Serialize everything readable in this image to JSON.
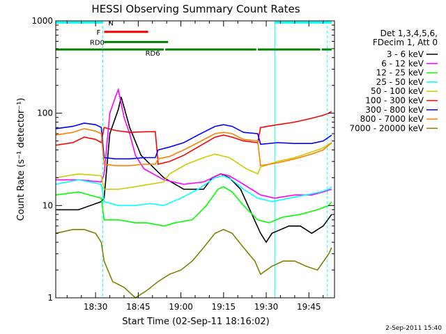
{
  "chart_data": {
    "type": "line",
    "title": "HESSI Observing Summary Count Rates",
    "xlabel": "Start Time (02-Sep-11 18:16:02)",
    "ylabel": "Count Rate (s⁻¹ detector⁻¹)",
    "x_unit": "minutes after 18:16:02",
    "xlim": [
      0,
      98
    ],
    "ylim": [
      1,
      1000
    ],
    "y_scale": "log",
    "grid": false,
    "x_ticks": [
      {
        "t": 14,
        "label": "18:30"
      },
      {
        "t": 29,
        "label": "18:45"
      },
      {
        "t": 44,
        "label": "19:00"
      },
      {
        "t": 59,
        "label": "19:15"
      },
      {
        "t": 74,
        "label": "19:30"
      },
      {
        "t": 89,
        "label": "19:45"
      }
    ],
    "minor_x_ticks": [
      4,
      9,
      19,
      24,
      34,
      39,
      49,
      54,
      64,
      69,
      79,
      84,
      94
    ],
    "y_ticks": [
      {
        "v": 1,
        "label": "1"
      },
      {
        "v": 10,
        "label": "10"
      },
      {
        "v": 100,
        "label": "100"
      },
      {
        "v": 1000,
        "label": "1000"
      }
    ],
    "legend": {
      "placement": "right",
      "header": [
        "Det 1,3,4,5,6,",
        "FDecim 1, Att 0"
      ]
    },
    "series": [
      {
        "name": "3 - 6 keV",
        "color": "#000000",
        "points": [
          [
            0,
            9
          ],
          [
            8,
            9
          ],
          [
            16,
            11
          ],
          [
            17,
            12
          ],
          [
            19,
            60
          ],
          [
            22,
            110
          ],
          [
            23,
            150
          ],
          [
            26,
            70
          ],
          [
            30,
            35
          ],
          [
            38,
            20
          ],
          [
            45,
            15
          ],
          [
            52,
            15
          ],
          [
            55,
            20
          ],
          [
            58,
            22
          ],
          [
            61,
            20
          ],
          [
            65,
            15
          ],
          [
            69,
            8
          ],
          [
            72,
            5
          ],
          [
            74,
            4
          ],
          [
            76,
            5
          ],
          [
            82,
            6
          ],
          [
            86,
            6
          ],
          [
            90,
            5
          ],
          [
            94,
            6
          ],
          [
            97,
            8
          ]
        ]
      },
      {
        "name": "6 - 12 keV",
        "color": "#ff00ff",
        "points": [
          [
            0,
            19
          ],
          [
            8,
            19
          ],
          [
            16,
            18
          ],
          [
            17,
            22
          ],
          [
            19,
            100
          ],
          [
            21,
            150
          ],
          [
            22,
            180
          ],
          [
            24,
            90
          ],
          [
            26,
            60
          ],
          [
            28,
            35
          ],
          [
            31,
            25
          ],
          [
            38,
            19
          ],
          [
            45,
            17
          ],
          [
            52,
            18
          ],
          [
            58,
            22
          ],
          [
            61,
            21
          ],
          [
            66,
            17
          ],
          [
            72,
            13
          ],
          [
            77,
            12
          ],
          [
            84,
            13
          ],
          [
            90,
            13
          ],
          [
            94,
            14
          ],
          [
            97,
            15
          ]
        ]
      },
      {
        "name": "12 - 25 keV",
        "color": "#00ff00",
        "points": [
          [
            0,
            13
          ],
          [
            8,
            14
          ],
          [
            16,
            12
          ],
          [
            17,
            7
          ],
          [
            22,
            7
          ],
          [
            28,
            6.5
          ],
          [
            32,
            6.5
          ],
          [
            38,
            6
          ],
          [
            42,
            6.5
          ],
          [
            48,
            7
          ],
          [
            53,
            10
          ],
          [
            57,
            15
          ],
          [
            59,
            16
          ],
          [
            62,
            14
          ],
          [
            66,
            10
          ],
          [
            71,
            7
          ],
          [
            75,
            6.5
          ],
          [
            80,
            7.5
          ],
          [
            86,
            8
          ],
          [
            92,
            9
          ],
          [
            96,
            10
          ],
          [
            97,
            11
          ]
        ]
      },
      {
        "name": "25 - 50 keV",
        "color": "#00ffff",
        "points": [
          [
            0,
            17
          ],
          [
            8,
            19
          ],
          [
            16,
            17
          ],
          [
            17,
            11
          ],
          [
            22,
            10
          ],
          [
            28,
            10
          ],
          [
            33,
            10.5
          ],
          [
            38,
            10
          ],
          [
            44,
            12
          ],
          [
            50,
            15
          ],
          [
            56,
            20
          ],
          [
            59,
            21
          ],
          [
            62,
            19
          ],
          [
            66,
            15
          ],
          [
            71,
            12
          ],
          [
            76,
            11
          ],
          [
            82,
            12
          ],
          [
            88,
            13
          ],
          [
            93,
            14
          ],
          [
            96,
            15
          ],
          [
            97,
            16
          ]
        ]
      },
      {
        "name": "50 - 100 keV",
        "color": "#cccc00",
        "points": [
          [
            0,
            20
          ],
          [
            8,
            22
          ],
          [
            16,
            21
          ],
          [
            17,
            15
          ],
          [
            22,
            15
          ],
          [
            28,
            16
          ],
          [
            33,
            17
          ],
          [
            38,
            18
          ],
          [
            40,
            22
          ],
          [
            46,
            28
          ],
          [
            52,
            33
          ],
          [
            56,
            36
          ],
          [
            61,
            33
          ],
          [
            67,
            25
          ],
          [
            71,
            22
          ],
          [
            72,
            26
          ],
          [
            78,
            30
          ],
          [
            84,
            33
          ],
          [
            90,
            38
          ],
          [
            94,
            42
          ],
          [
            96,
            46
          ],
          [
            97,
            48
          ]
        ]
      },
      {
        "name": "100 - 300 keV",
        "color": "#ff0000",
        "points": [
          [
            0,
            45
          ],
          [
            6,
            48
          ],
          [
            10,
            55
          ],
          [
            14,
            52
          ],
          [
            16,
            48
          ],
          [
            17,
            70
          ],
          [
            21,
            65
          ],
          [
            26,
            62
          ],
          [
            32,
            63
          ],
          [
            35,
            63
          ],
          [
            36,
            28
          ],
          [
            40,
            30
          ],
          [
            45,
            35
          ],
          [
            50,
            43
          ],
          [
            56,
            55
          ],
          [
            59,
            58
          ],
          [
            62,
            55
          ],
          [
            66,
            50
          ],
          [
            71,
            48
          ],
          [
            72,
            70
          ],
          [
            78,
            75
          ],
          [
            84,
            80
          ],
          [
            90,
            88
          ],
          [
            94,
            95
          ],
          [
            96,
            100
          ],
          [
            97,
            105
          ]
        ]
      },
      {
        "name": "300 - 800 keV",
        "color": "#0000ff",
        "points": [
          [
            0,
            68
          ],
          [
            6,
            72
          ],
          [
            10,
            78
          ],
          [
            14,
            75
          ],
          [
            16,
            70
          ],
          [
            17,
            33
          ],
          [
            21,
            32
          ],
          [
            26,
            32
          ],
          [
            31,
            33
          ],
          [
            35,
            33
          ],
          [
            36,
            40
          ],
          [
            40,
            43
          ],
          [
            45,
            48
          ],
          [
            50,
            58
          ],
          [
            56,
            72
          ],
          [
            59,
            75
          ],
          [
            62,
            72
          ],
          [
            66,
            62
          ],
          [
            71,
            60
          ],
          [
            72,
            46
          ],
          [
            78,
            48
          ],
          [
            84,
            47
          ],
          [
            90,
            47
          ],
          [
            94,
            50
          ],
          [
            96,
            55
          ],
          [
            97,
            58
          ]
        ]
      },
      {
        "name": "800 - 7000 keV",
        "color": "#ff8000",
        "points": [
          [
            0,
            58
          ],
          [
            6,
            62
          ],
          [
            10,
            68
          ],
          [
            14,
            64
          ],
          [
            16,
            60
          ],
          [
            17,
            28
          ],
          [
            21,
            27
          ],
          [
            26,
            27
          ],
          [
            31,
            28
          ],
          [
            35,
            28
          ],
          [
            36,
            32
          ],
          [
            40,
            34
          ],
          [
            45,
            40
          ],
          [
            50,
            48
          ],
          [
            56,
            60
          ],
          [
            59,
            62
          ],
          [
            62,
            60
          ],
          [
            66,
            52
          ],
          [
            71,
            50
          ],
          [
            72,
            27
          ],
          [
            78,
            29
          ],
          [
            84,
            32
          ],
          [
            90,
            36
          ],
          [
            94,
            40
          ],
          [
            96,
            45
          ],
          [
            97,
            48
          ]
        ]
      },
      {
        "name": "7000 - 20000 keV",
        "color": "#808000",
        "points": [
          [
            0,
            5
          ],
          [
            6,
            5.5
          ],
          [
            10,
            5.5
          ],
          [
            14,
            5
          ],
          [
            16,
            4
          ],
          [
            17,
            2.5
          ],
          [
            20,
            1.5
          ],
          [
            24,
            1.3
          ],
          [
            28,
            1
          ],
          [
            32,
            1.2
          ],
          [
            36,
            1.5
          ],
          [
            40,
            1.8
          ],
          [
            44,
            2
          ],
          [
            48,
            2.5
          ],
          [
            52,
            3.5
          ],
          [
            56,
            5
          ],
          [
            59,
            5.5
          ],
          [
            62,
            5
          ],
          [
            66,
            3.5
          ],
          [
            70,
            2.5
          ],
          [
            72,
            1.8
          ],
          [
            76,
            2.2
          ],
          [
            80,
            2.5
          ],
          [
            84,
            2.5
          ],
          [
            88,
            2.2
          ],
          [
            92,
            2
          ],
          [
            96,
            3
          ],
          [
            97,
            3.5
          ]
        ]
      }
    ],
    "status_bars": [
      {
        "label": "N",
        "color": "#00ffff",
        "segments": [
          [
            0,
            16.5
          ],
          [
            77,
            97
          ]
        ],
        "y": 960
      },
      {
        "label": "F",
        "color": "#ff0000",
        "segments": [
          [
            17,
            32.5
          ]
        ],
        "y": 760
      },
      {
        "label": "RD0",
        "color": "#008000",
        "segments": [
          [
            17,
            39.5
          ]
        ],
        "y": 590
      },
      {
        "label": "RD6",
        "color": "#008000",
        "segments": [
          [
            0,
            38
          ],
          [
            38.5,
            70.5
          ],
          [
            71,
            93
          ],
          [
            93.5,
            97
          ]
        ],
        "y": 490
      }
    ],
    "vertical_markers": [
      {
        "t": 0,
        "style": "solid",
        "color": "#00ffff"
      },
      {
        "t": 16.5,
        "style": "dashed",
        "color": "#00ffff"
      },
      {
        "t": 77,
        "style": "solid",
        "color": "#00ffff"
      },
      {
        "t": 95.5,
        "style": "dashed",
        "color": "#00ffff"
      }
    ]
  },
  "footer": {
    "stamp": "2-Sep-2011 15:40"
  }
}
